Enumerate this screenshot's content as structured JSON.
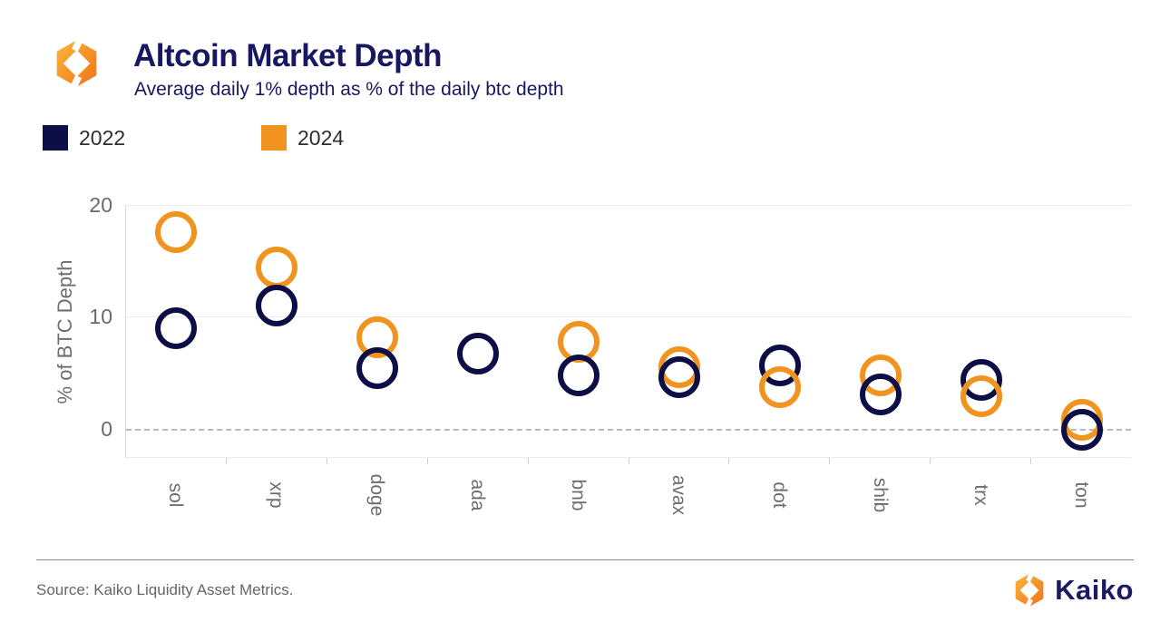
{
  "header": {
    "title": "Altcoin Market Depth",
    "subtitle": "Average daily 1% depth as % of the daily btc depth"
  },
  "chart_data": {
    "type": "scatter",
    "marker": "open-circle",
    "categories": [
      "sol",
      "xrp",
      "doge",
      "ada",
      "bnb",
      "avax",
      "dot",
      "shib",
      "trx",
      "ton"
    ],
    "series": [
      {
        "name": "2022",
        "color": "#0e0e46",
        "values": [
          9.0,
          11.0,
          5.4,
          6.7,
          4.8,
          4.6,
          5.7,
          3.1,
          4.4,
          -0.1
        ]
      },
      {
        "name": "2024",
        "color": "#f0941f",
        "values": [
          17.6,
          14.4,
          8.2,
          null,
          7.8,
          5.5,
          3.7,
          4.8,
          2.9,
          0.8
        ]
      }
    ],
    "title": "Altcoin Market Depth",
    "subtitle": "Average daily 1% depth as % of the daily btc depth",
    "xlabel": "",
    "ylabel": "% of BTC Depth",
    "yticks": [
      0,
      10,
      20
    ],
    "ylim": [
      -2.6,
      20
    ],
    "grid": "horizontal",
    "zero_line": "dashed",
    "legend_position": "top-left"
  },
  "footer": {
    "source": "Source: Kaiko Liquidity Asset Metrics.",
    "brand": "Kaiko"
  },
  "brand": {
    "navy": "#1b1b63",
    "gradient_start": "#fcb53b",
    "gradient_end": "#f07317"
  }
}
